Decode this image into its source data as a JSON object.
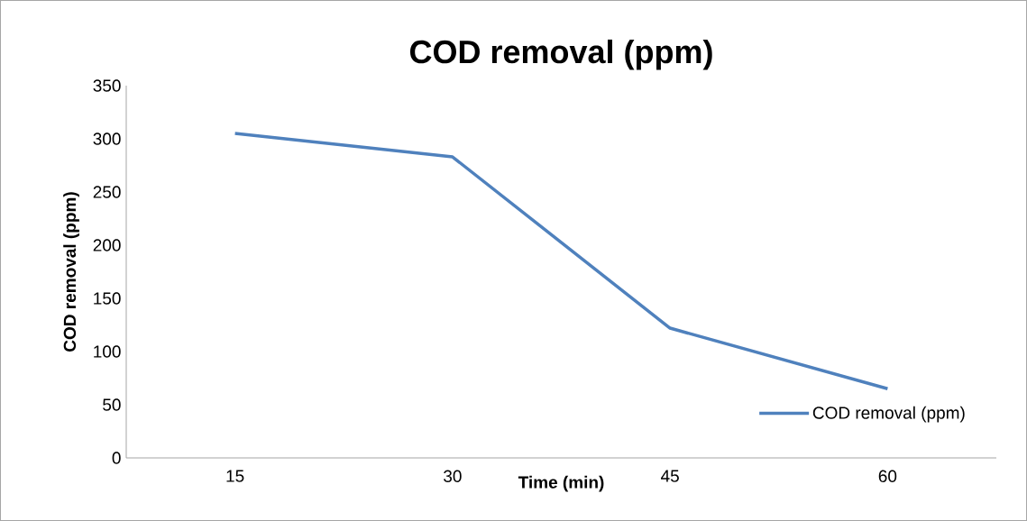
{
  "chart_data": {
    "type": "line",
    "title": "COD removal (ppm)",
    "xlabel": "Time (min)",
    "ylabel": "COD removal (ppm)",
    "categories": [
      "15",
      "30",
      "45",
      "60"
    ],
    "series": [
      {
        "name": "COD removal (ppm)",
        "color": "#4f81bd",
        "values": [
          305,
          283,
          122,
          65
        ]
      }
    ],
    "ylim": [
      0,
      350
    ],
    "yticks": [
      0,
      50,
      100,
      150,
      200,
      250,
      300,
      350
    ],
    "grid": false,
    "legend": "bottom right",
    "marker": "none",
    "line_style": "solid"
  }
}
